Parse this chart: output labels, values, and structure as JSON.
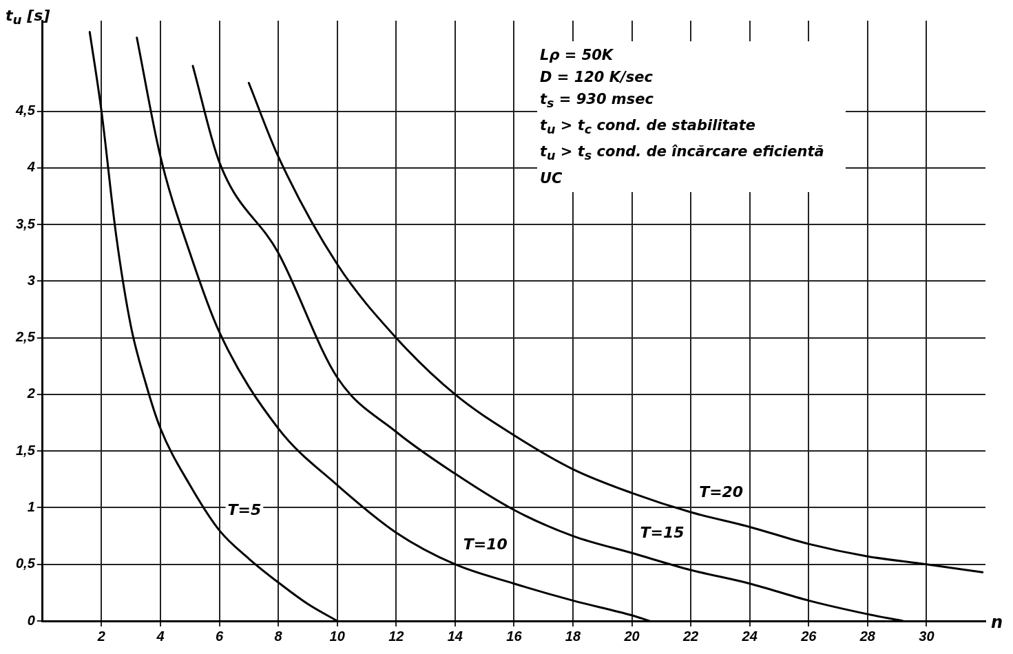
{
  "chart_data": {
    "type": "line",
    "xlabel": "n",
    "ylabel": "t$_{u}$ [s]",
    "annotations": [
      "Lρ = 50K",
      "D = 120 K/sec",
      "t$_{s}$ = 930 msec",
      "t$_{u}$ > t$_{c}$ cond. de stabilitate",
      "t$_{u}$ > t$_{s}$ cond. de încărcare eficientă UC"
    ],
    "xlim": [
      0,
      32
    ],
    "ylim": [
      0,
      5.3
    ],
    "xticks": [
      2,
      4,
      6,
      8,
      10,
      12,
      14,
      16,
      18,
      20,
      22,
      24,
      26,
      28,
      30
    ],
    "yticks": [
      0,
      {
        "value": 0.5,
        "label": "0,5"
      },
      1,
      {
        "value": 1.5,
        "label": "1,5"
      },
      2,
      {
        "value": 2.5,
        "label": "2,5"
      },
      3,
      {
        "value": 3.5,
        "label": "3,5"
      },
      4,
      {
        "value": 4.5,
        "label": "4,5"
      }
    ],
    "grid": true,
    "legend": false,
    "marker": "none",
    "line_style": "solid",
    "series": [
      {
        "name": "T=5",
        "color": "#000000",
        "x": [
          1.6,
          2,
          2.5,
          3,
          3.5,
          4,
          5,
          6,
          7,
          8,
          9,
          10
        ],
        "values": [
          5.2,
          4.5,
          3.4,
          2.6,
          2.1,
          1.7,
          1.2,
          0.8,
          0.55,
          0.34,
          0.15,
          0
        ]
      },
      {
        "name": "T=10",
        "color": "#000000",
        "x": [
          3.2,
          4,
          5,
          6,
          8,
          10,
          12,
          14,
          16,
          18,
          20,
          20.6
        ],
        "values": [
          5.15,
          4.1,
          3.25,
          2.55,
          1.7,
          1.2,
          0.78,
          0.5,
          0.33,
          0.18,
          0.05,
          0
        ]
      },
      {
        "name": "T=15",
        "color": "#000000",
        "x": [
          5.1,
          6,
          8,
          10,
          12,
          14,
          16,
          18,
          20,
          22,
          24,
          26,
          28,
          29.2
        ],
        "values": [
          4.9,
          4.05,
          3.25,
          2.15,
          1.67,
          1.3,
          0.98,
          0.75,
          0.6,
          0.45,
          0.33,
          0.18,
          0.06,
          0
        ]
      },
      {
        "name": "T=20",
        "color": "#000000",
        "x": [
          7,
          8,
          10,
          12,
          14,
          16,
          18,
          20,
          22,
          24,
          26,
          28,
          30,
          31.9
        ],
        "values": [
          4.75,
          4.1,
          3.15,
          2.5,
          2,
          1.64,
          1.34,
          1.13,
          0.96,
          0.83,
          0.68,
          0.57,
          0.5,
          0.43
        ]
      }
    ]
  }
}
